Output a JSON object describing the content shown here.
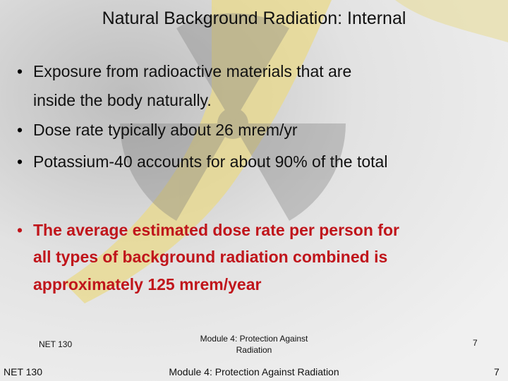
{
  "title": "Natural Background Radiation: Internal",
  "bullets": [
    [
      "Exposure from radioactive materials that are",
      "inside the body naturally."
    ],
    [
      "Dose rate typically about 26 mrem/yr"
    ],
    [
      "Potassium-40 accounts for about 90% of the total"
    ]
  ],
  "highlight": [
    "The average estimated dose rate per person for",
    "all types of background radiation combined is",
    "approximately 125 mrem/year"
  ],
  "footer": {
    "course_small": "NET 130",
    "course": "NET 130",
    "module_small": [
      "Module 4: Protection Against",
      "Radiation"
    ],
    "module": "Module 4: Protection Against Radiation",
    "page_small": "7",
    "page": "7"
  }
}
